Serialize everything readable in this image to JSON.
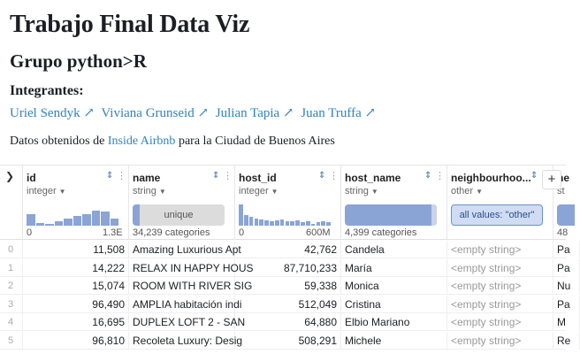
{
  "page": {
    "title": "Trabajo Final Data Viz",
    "subtitle": "Grupo python>R",
    "members_heading": "Integrantes:",
    "members": [
      "Uriel Sendyk ↗",
      "Viviana Grunseid ↗",
      "Julian Tapia ↗",
      "Juan Truffa ↗"
    ],
    "intro_prefix": "Datos obtenidos de ",
    "intro_link": "Inside Airbnb",
    "intro_suffix": " para la Ciudad de Buenos Aires"
  },
  "table": {
    "columns": [
      {
        "name": "id",
        "type": "integer",
        "summary": "histogram",
        "range_min": "0",
        "range_max": "1.3E",
        "hist": [
          0.55,
          0.12,
          0.1,
          0.2,
          0.35,
          0.45,
          0.55,
          0.7,
          0.65,
          0.35
        ]
      },
      {
        "name": "name",
        "type": "string",
        "summary": "unique",
        "summary_text": "unique",
        "categories": "34,239 categories"
      },
      {
        "name": "host_id",
        "type": "integer",
        "summary": "histogram",
        "range_min": "0",
        "range_max": "600M",
        "hist": [
          1.0,
          0.5,
          0.4,
          0.35,
          0.3,
          0.25,
          0.2,
          0.25,
          0.3,
          0.2,
          0.2,
          0.25,
          0.15,
          0.2,
          0.1,
          0.15,
          0.2,
          0.15
        ]
      },
      {
        "name": "host_name",
        "type": "string",
        "summary": "categories",
        "categories": "4,399 categories"
      },
      {
        "name": "neighbourhoo...",
        "type": "other",
        "summary": "all",
        "summary_text": "all values: \"other\""
      },
      {
        "name": "ne",
        "type": "st",
        "categories": "48"
      }
    ],
    "rows": [
      {
        "index": "0",
        "id": "11,508",
        "name": "Amazing Luxurious Apt",
        "host_id": "42,762",
        "host_name": "Candela",
        "neighbourhood": "<empty string>",
        "next": "Pa"
      },
      {
        "index": "1",
        "id": "14,222",
        "name": "RELAX IN HAPPY HOUS",
        "host_id": "87,710,233",
        "host_name": "María",
        "neighbourhood": "<empty string>",
        "next": "Pa"
      },
      {
        "index": "2",
        "id": "15,074",
        "name": "ROOM WITH RIVER SIG",
        "host_id": "59,338",
        "host_name": "Monica",
        "neighbourhood": "<empty string>",
        "next": "Nu"
      },
      {
        "index": "3",
        "id": "96,490",
        "name": "AMPLIA habitación indi",
        "host_id": "512,049",
        "host_name": "Cristina",
        "neighbourhood": "<empty string>",
        "next": "Pa"
      },
      {
        "index": "4",
        "id": "16,695",
        "name": "DUPLEX LOFT 2 - SAN",
        "host_id": "64,880",
        "host_name": "Elbio Mariano",
        "neighbourhood": "<empty string>",
        "next": "M"
      },
      {
        "index": "5",
        "id": "96,810",
        "name": "Recoleta Luxury: Desig",
        "host_id": "508,291",
        "host_name": "Michele",
        "neighbourhood": "<empty string>",
        "next": "Re"
      }
    ],
    "colors": {
      "bar": "#8aa4d6",
      "link": "#3182bd"
    }
  }
}
